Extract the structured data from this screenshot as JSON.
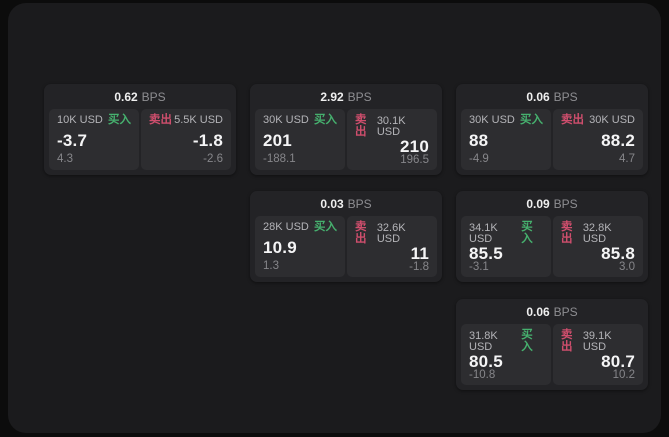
{
  "colors": {
    "page_bg": "#0c0c0c",
    "surface_bg": "#1b1b1d",
    "card_bg": "#232326",
    "panel_bg": "#2d2d30",
    "buy_green": "#46b06e",
    "sell_red": "#cf4e6d",
    "text_primary": "#f5f5f6",
    "text_secondary": "#b4b4b8",
    "text_muted": "#86868a"
  },
  "labels": {
    "buy": "买入",
    "sell": "卖出",
    "bps": "BPS"
  },
  "cards": [
    {
      "bps": "0.62",
      "buy": {
        "size": "10K USD",
        "price": "-3.7",
        "delta": "4.3"
      },
      "sell": {
        "size": "5.5K USD",
        "price": "-1.8",
        "delta": "-2.6"
      }
    },
    {
      "bps": "2.92",
      "buy": {
        "size": "30K USD",
        "price": "201",
        "delta": "-188.1"
      },
      "sell": {
        "size": "30.1K USD",
        "price": "210",
        "delta": "196.5"
      }
    },
    {
      "bps": "0.06",
      "buy": {
        "size": "30K USD",
        "price": "88",
        "delta": "-4.9"
      },
      "sell": {
        "size": "30K USD",
        "price": "88.2",
        "delta": "4.7"
      }
    },
    {
      "bps": "0.03",
      "buy": {
        "size": "28K USD",
        "price": "10.9",
        "delta": "1.3"
      },
      "sell": {
        "size": "32.6K USD",
        "price": "11",
        "delta": "-1.8"
      }
    },
    {
      "bps": "0.09",
      "buy": {
        "size": "34.1K USD",
        "price": "85.5",
        "delta": "-3.1"
      },
      "sell": {
        "size": "32.8K USD",
        "price": "85.8",
        "delta": "3.0"
      }
    },
    {
      "bps": "0.06",
      "buy": {
        "size": "31.8K USD",
        "price": "80.5",
        "delta": "-10.8"
      },
      "sell": {
        "size": "39.1K USD",
        "price": "80.7",
        "delta": "10.2"
      }
    }
  ]
}
